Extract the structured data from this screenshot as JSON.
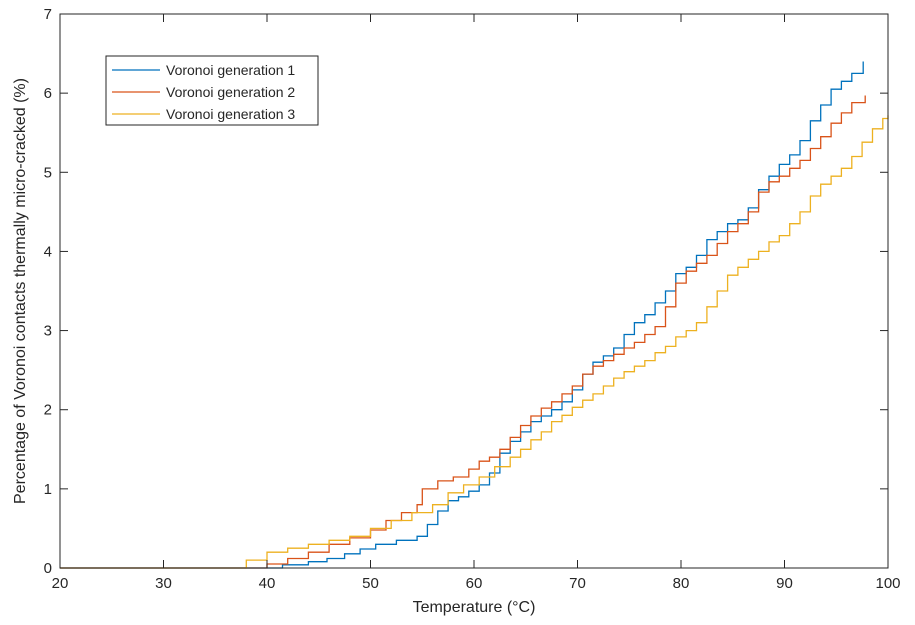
{
  "chart_data": {
    "type": "line",
    "xlabel": "Temperature (°C)",
    "ylabel": "Percentage of Voronoi contacts thermally micro-cracked (%)",
    "xlim": [
      20,
      100
    ],
    "ylim": [
      0,
      7
    ],
    "xticks": [
      20,
      30,
      40,
      50,
      60,
      70,
      80,
      90,
      100
    ],
    "yticks": [
      0,
      1,
      2,
      3,
      4,
      5,
      6,
      7
    ],
    "grid": false,
    "legend_position": "top-left",
    "series": [
      {
        "name": "Voronoi generation 1",
        "color": "#0072BD",
        "x": [
          20,
          41.3,
          41.5,
          44.0,
          45.8,
          47.5,
          49.0,
          50.5,
          52.5,
          54.5,
          55.5,
          56.5,
          57.5,
          58.5,
          59.5,
          60.5,
          61.5,
          62.5,
          63.5,
          64.5,
          65.5,
          66.5,
          67.5,
          68.5,
          69.5,
          70.5,
          71.5,
          72.5,
          73.5,
          74.5,
          75.5,
          76.5,
          77.5,
          78.5,
          79.5,
          80.5,
          81.5,
          82.5,
          83.5,
          84.5,
          85.5,
          86.5,
          87.5,
          88.5,
          89.5,
          90.5,
          91.5,
          92.5,
          93.5,
          94.5,
          95.5,
          96.5,
          97.6
        ],
        "y": [
          0,
          0,
          0.04,
          0.08,
          0.12,
          0.18,
          0.24,
          0.3,
          0.35,
          0.4,
          0.55,
          0.72,
          0.85,
          0.9,
          0.97,
          1.05,
          1.2,
          1.45,
          1.6,
          1.72,
          1.85,
          1.92,
          2.0,
          2.1,
          2.25,
          2.45,
          2.6,
          2.68,
          2.78,
          2.95,
          3.1,
          3.2,
          3.35,
          3.5,
          3.72,
          3.8,
          3.95,
          4.15,
          4.25,
          4.35,
          4.4,
          4.55,
          4.78,
          4.95,
          5.1,
          5.22,
          5.4,
          5.65,
          5.85,
          6.05,
          6.15,
          6.25,
          6.4
        ]
      },
      {
        "name": "Voronoi generation 2",
        "color": "#D95319",
        "x": [
          20,
          39.8,
          40.0,
          42.0,
          44.0,
          46.0,
          48.0,
          50.0,
          51.5,
          53.0,
          54.5,
          55.0,
          56.5,
          58.0,
          59.5,
          60.5,
          61.5,
          62.5,
          63.5,
          64.5,
          65.5,
          66.5,
          67.5,
          68.5,
          69.5,
          70.5,
          71.5,
          72.5,
          73.5,
          74.5,
          75.5,
          76.5,
          77.5,
          78.5,
          79.5,
          80.5,
          81.5,
          82.5,
          83.5,
          84.5,
          85.5,
          86.5,
          87.5,
          88.5,
          89.5,
          90.5,
          91.5,
          92.5,
          93.5,
          94.5,
          95.5,
          96.5,
          97.8
        ],
        "y": [
          0,
          0,
          0.05,
          0.12,
          0.2,
          0.3,
          0.38,
          0.48,
          0.6,
          0.7,
          0.8,
          1.0,
          1.1,
          1.15,
          1.25,
          1.35,
          1.4,
          1.5,
          1.65,
          1.8,
          1.92,
          2.02,
          2.1,
          2.2,
          2.3,
          2.45,
          2.55,
          2.62,
          2.7,
          2.78,
          2.85,
          2.95,
          3.05,
          3.3,
          3.6,
          3.75,
          3.85,
          3.95,
          4.1,
          4.25,
          4.35,
          4.5,
          4.75,
          4.88,
          4.95,
          5.05,
          5.15,
          5.3,
          5.45,
          5.62,
          5.75,
          5.88,
          5.97
        ]
      },
      {
        "name": "Voronoi generation 3",
        "color": "#EDB120",
        "x": [
          20,
          37.7,
          38.0,
          40.0,
          42.0,
          44.0,
          46.0,
          48.0,
          50.0,
          52.0,
          54.0,
          56.0,
          57.5,
          59.0,
          60.5,
          62.0,
          63.5,
          64.5,
          65.5,
          66.5,
          67.5,
          68.5,
          69.5,
          70.5,
          71.5,
          72.5,
          73.5,
          74.5,
          75.5,
          76.5,
          77.5,
          78.5,
          79.5,
          80.5,
          81.5,
          82.5,
          83.5,
          84.5,
          85.5,
          86.5,
          87.5,
          88.5,
          89.5,
          90.5,
          91.5,
          92.5,
          93.5,
          94.5,
          95.5,
          96.5,
          97.5,
          98.5,
          99.5,
          100
        ],
        "y": [
          0,
          0,
          0.1,
          0.2,
          0.25,
          0.3,
          0.35,
          0.4,
          0.5,
          0.6,
          0.7,
          0.8,
          0.95,
          1.05,
          1.15,
          1.28,
          1.4,
          1.5,
          1.62,
          1.72,
          1.85,
          1.93,
          2.03,
          2.12,
          2.2,
          2.3,
          2.4,
          2.48,
          2.55,
          2.62,
          2.72,
          2.8,
          2.92,
          3.0,
          3.1,
          3.3,
          3.5,
          3.7,
          3.8,
          3.9,
          4.0,
          4.12,
          4.2,
          4.35,
          4.5,
          4.7,
          4.85,
          4.95,
          5.05,
          5.2,
          5.38,
          5.55,
          5.68,
          5.72
        ]
      }
    ]
  }
}
